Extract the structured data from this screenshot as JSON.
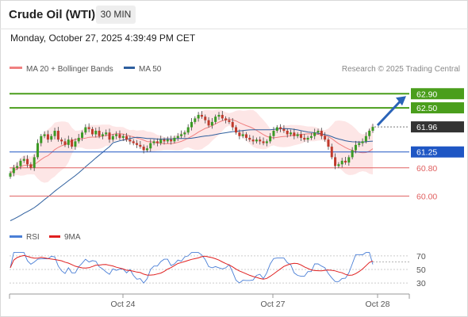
{
  "header": {
    "title": "Crude Oil (WTI)",
    "timeframe": "30 MIN",
    "datetime": "Monday, October 27, 2025 4:39:49 PM CET"
  },
  "chart_data": [
    {
      "type": "candlestick",
      "legend": [
        {
          "name": "MA 20 + Bollinger Bands",
          "color": "#f08080"
        },
        {
          "name": "MA 50",
          "color": "#2e5f9e"
        }
      ],
      "credit": "Research © 2025 Trading Central",
      "ylim": [
        59.2,
        63.4
      ],
      "levels": [
        {
          "value": 62.9,
          "label": "62.90",
          "color": "#4a9e1c",
          "style": "resistance"
        },
        {
          "value": 62.5,
          "label": "62.50",
          "color": "#4a9e1c",
          "style": "resistance"
        },
        {
          "value": 61.96,
          "label": "61.96",
          "color": "#333333",
          "style": "last"
        },
        {
          "value": 61.25,
          "label": "61.25",
          "color": "#1e56c4",
          "style": "pivot"
        },
        {
          "value": 60.8,
          "label": "60.80",
          "color": "#e06060",
          "style": "support"
        },
        {
          "value": 60.0,
          "label": "60.00",
          "color": "#e06060",
          "style": "support"
        }
      ],
      "close_approx": [
        60.65,
        60.8,
        60.85,
        61.0,
        61.05,
        60.9,
        60.8,
        61.1,
        61.5,
        61.7,
        61.75,
        61.6,
        61.7,
        61.85,
        61.6,
        61.55,
        61.45,
        61.6,
        61.4,
        61.55,
        61.65,
        61.8,
        61.95,
        61.9,
        61.75,
        61.85,
        61.7,
        61.75,
        61.8,
        61.6,
        61.7,
        61.75,
        61.65,
        61.7,
        61.6,
        61.55,
        61.5,
        61.45,
        61.4,
        61.3,
        61.35,
        61.5,
        61.55,
        61.5,
        61.6,
        61.55,
        61.6,
        61.55,
        61.65,
        61.7,
        61.75,
        61.8,
        61.95,
        62.1,
        62.2,
        62.3,
        62.25,
        62.15,
        62.0,
        62.1,
        62.25,
        62.3,
        62.2,
        62.15,
        62.1,
        61.95,
        61.8,
        61.7,
        61.75,
        61.65,
        61.6,
        61.55,
        61.6,
        61.55,
        61.5,
        61.55,
        61.7,
        61.85,
        61.95,
        61.9,
        61.85,
        61.75,
        61.8,
        61.7,
        61.75,
        61.65,
        61.6,
        61.65,
        61.7,
        61.8,
        61.85,
        61.7,
        61.6,
        61.4,
        61.1,
        60.85,
        60.9,
        61.0,
        60.95,
        61.1,
        61.3,
        61.45,
        61.5,
        61.55,
        61.7,
        61.85,
        61.96
      ]
    },
    {
      "type": "line",
      "title": "RSI",
      "series": [
        {
          "name": "RSI",
          "color": "#4a7fd6"
        },
        {
          "name": "9MA",
          "color": "#e02020"
        }
      ],
      "yticks": [
        70,
        50,
        30
      ],
      "last_value_approx": 61,
      "xticks": [
        "Oct 24",
        "Oct 27",
        "Oct 28"
      ]
    }
  ]
}
